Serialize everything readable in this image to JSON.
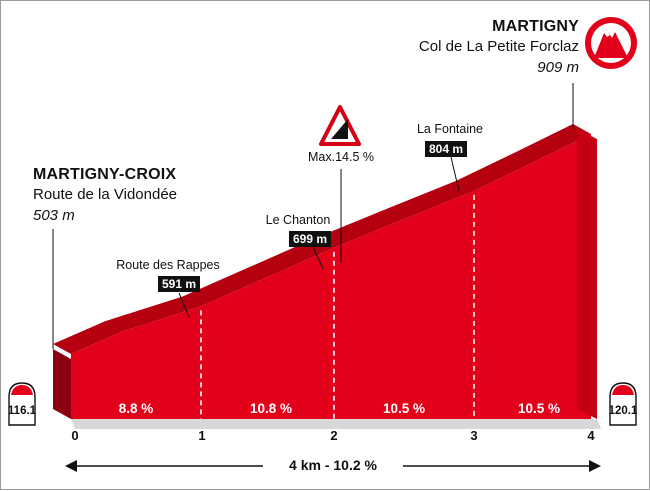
{
  "start": {
    "name": "MARTIGNY-CROIX",
    "place": "Route de la Vidondée",
    "altitude": "503 m",
    "km_marker": "116.1"
  },
  "finish": {
    "name": "MARTIGNY",
    "place": "Col de La Petite Forclaz",
    "altitude": "909 m",
    "km_marker": "120.1"
  },
  "waypoints": [
    {
      "name": "Route des Rappes",
      "altitude": "591 m"
    },
    {
      "name": "Le Chanton",
      "altitude": "699 m"
    },
    {
      "name": "La Fontaine",
      "altitude": "804 m"
    }
  ],
  "max_gradient": "Max.14.5 %",
  "segment_gradients": [
    "8.8 %",
    "10.8 %",
    "10.5 %",
    "10.5 %"
  ],
  "x_ticks": [
    "0",
    "1",
    "2",
    "3",
    "4"
  ],
  "summary": "4 km - 10.2  %",
  "colors": {
    "profile_front": "#e3001b",
    "profile_top": "#b5000f",
    "profile_dark": "#8d0011",
    "baseline": "#dcdcdc",
    "chip": "#111111"
  },
  "icons": {
    "finish": "mountain-summit-icon",
    "gradient_warning": "steep-gradient-warning-icon",
    "km_marker": "km-marker-icon"
  },
  "chart_data": {
    "type": "area",
    "xlabel": "",
    "ylabel": "",
    "x": [
      0,
      0.4,
      1,
      1.5,
      2,
      2.5,
      3,
      3.5,
      4
    ],
    "y": [
      503,
      545,
      591,
      645,
      699,
      752,
      804,
      856,
      909
    ],
    "xlim": [
      0,
      4
    ],
    "segments": [
      {
        "from": 0,
        "to": 1,
        "gradient": 8.8
      },
      {
        "from": 1,
        "to": 2,
        "gradient": 10.8
      },
      {
        "from": 2,
        "to": 3,
        "gradient": 10.5
      },
      {
        "from": 3,
        "to": 4,
        "gradient": 10.5
      }
    ]
  }
}
